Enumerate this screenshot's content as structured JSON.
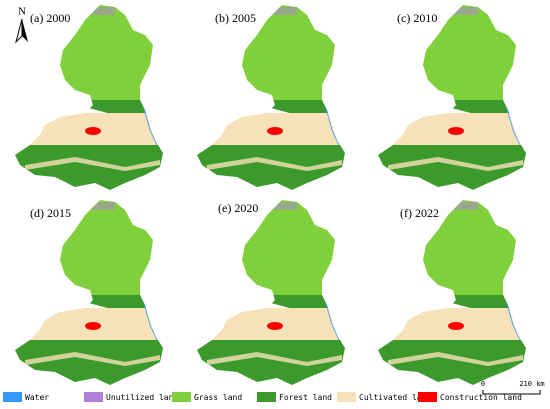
{
  "north": "N",
  "panels": [
    {
      "label": "(a) 2000"
    },
    {
      "label": "(b) 2005"
    },
    {
      "label": "(c) 2010"
    },
    {
      "label": "(d) 2015"
    },
    {
      "label": "(e) 2020"
    },
    {
      "label": "(f) 2022"
    }
  ],
  "legend": [
    {
      "name": "Water",
      "color": "#3399ff"
    },
    {
      "name": "Unutilized land",
      "color": "#b07fd8"
    },
    {
      "name": "Grass land",
      "color": "#80d03c"
    },
    {
      "name": "Forest land",
      "color": "#3c9a2c"
    },
    {
      "name": "Cultivated land",
      "color": "#f6e1b8"
    },
    {
      "name": "Construction land",
      "color": "#ff0000"
    }
  ],
  "scale_bar": {
    "start": "0",
    "end": "210 km"
  }
}
